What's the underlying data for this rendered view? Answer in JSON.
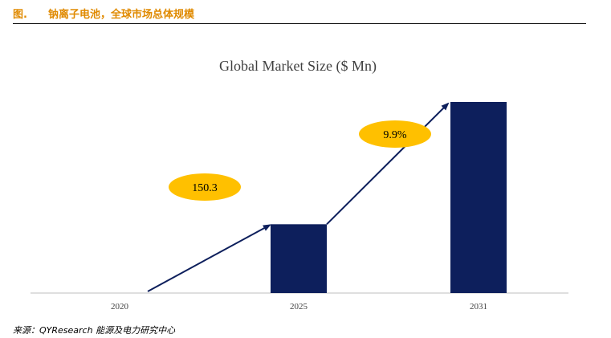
{
  "figure": {
    "label": "图.",
    "title": "钠离子电池，全球市场总体规模",
    "source": "来源：QYResearch 能源及电力研究中心"
  },
  "colors": {
    "header_text": "#E08A00",
    "bar": "#0D1F5C",
    "arrow": "#0D1F5C",
    "bubble": "#FFC000"
  },
  "chart_data": {
    "type": "bar",
    "title": "Global Market Size ($ Mn)",
    "categories": [
      "2020",
      "2025",
      "2031"
    ],
    "values": [
      0,
      36,
      100
    ],
    "annotations": [
      {
        "text": "150.3",
        "segment": "2020-2025"
      },
      {
        "text": "9.9%",
        "segment": "2025-2031"
      }
    ],
    "grid": false,
    "legend": "none"
  }
}
